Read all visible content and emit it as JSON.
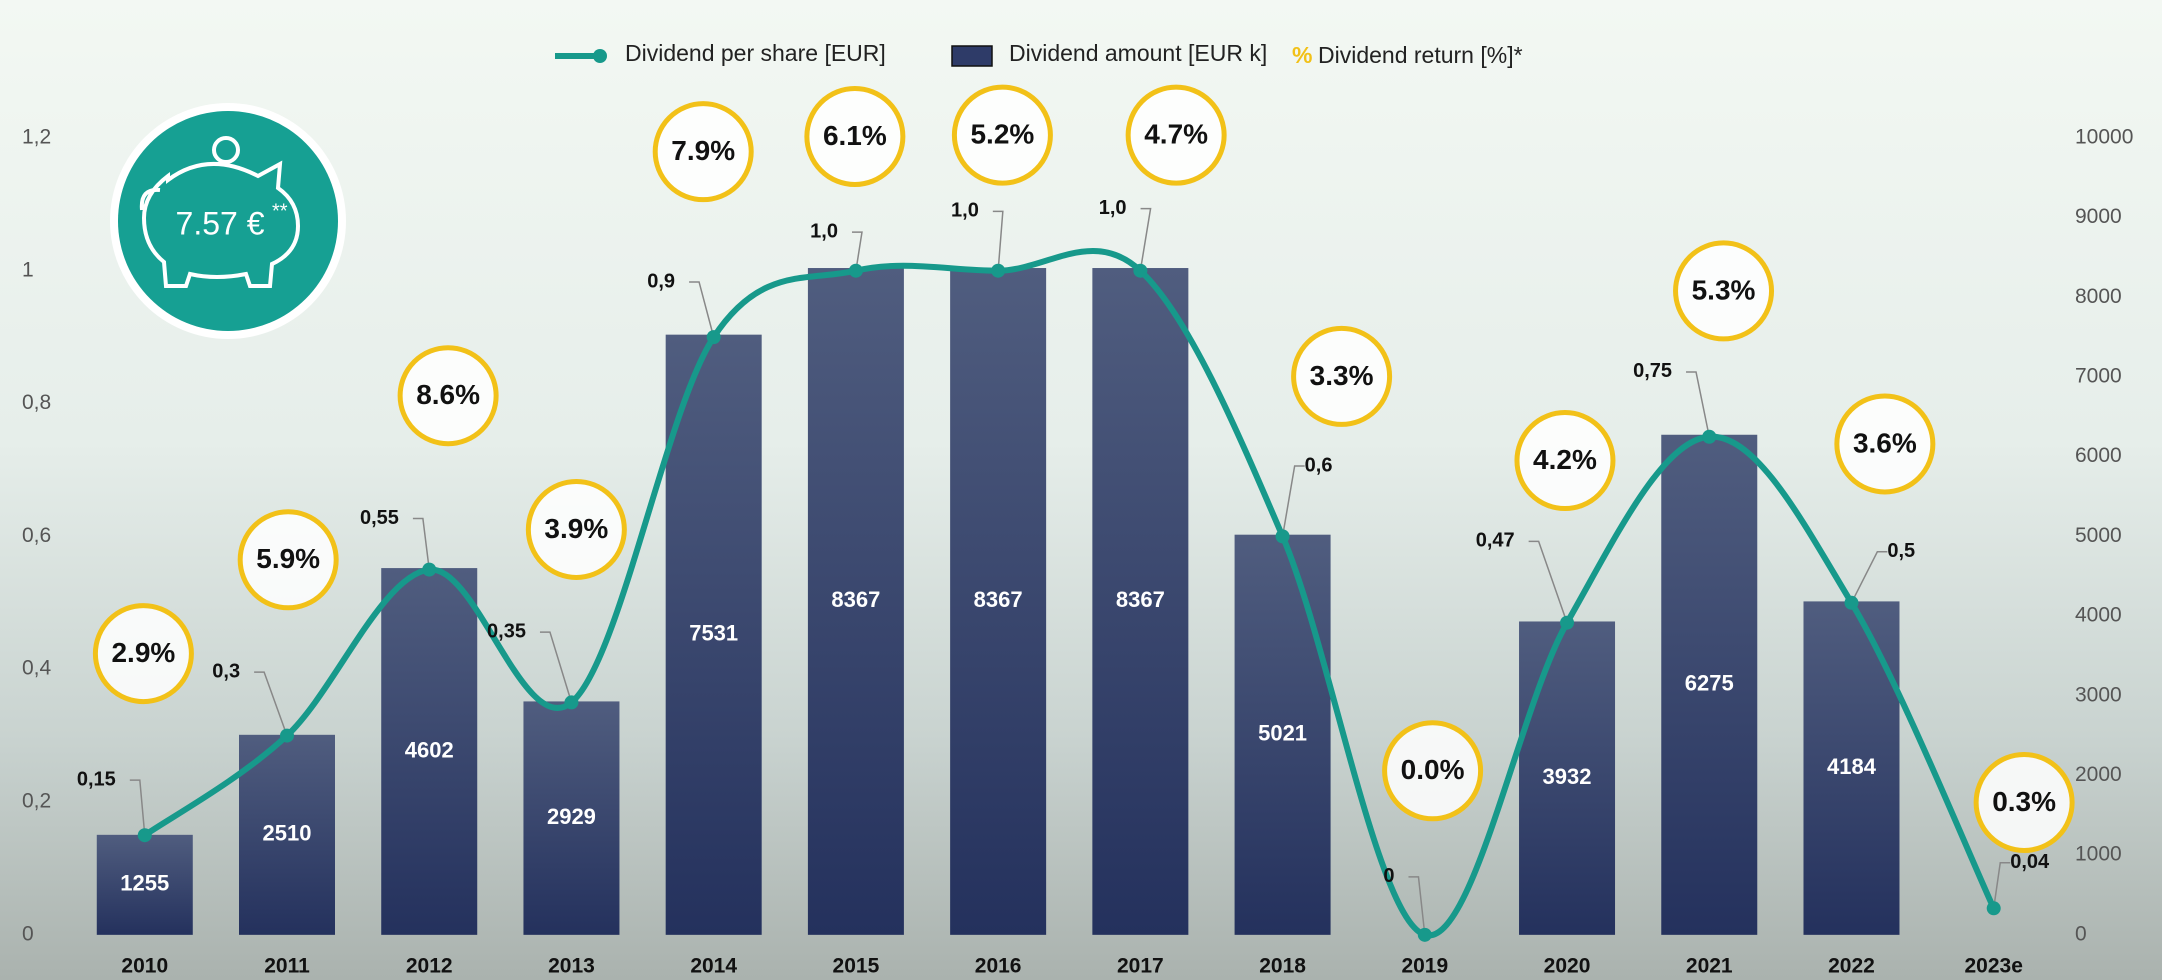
{
  "badge": {
    "text": "7.57 €",
    "sup": "**"
  },
  "chart_data": {
    "type": "combo",
    "categories": [
      "2010",
      "2011",
      "2012",
      "2013",
      "2014",
      "2015",
      "2016",
      "2017",
      "2018",
      "2019",
      "2020",
      "2021",
      "2022",
      "2023e"
    ],
    "series": [
      {
        "name": "Dividend per share [EUR]",
        "color": "#17998b",
        "axis": "y",
        "values": [
          0.15,
          0.3,
          0.55,
          0.35,
          0.9,
          1.0,
          1.0,
          1.0,
          0.6,
          0,
          0.47,
          0.75,
          0.5,
          0.04
        ],
        "value_labels": [
          "0,15",
          "0,3",
          "0,55",
          "0,35",
          "0,9",
          "1,0",
          "1,0",
          "1,0",
          "0,6",
          "0",
          "0,47",
          "0,75",
          "0,5",
          "0,04"
        ]
      },
      {
        "name": "Dividend amount [EUR k]",
        "color": "#2e3b68",
        "axis": "y2",
        "values": [
          1255,
          2510,
          4602,
          2929,
          7531,
          8367,
          8367,
          8367,
          5021,
          null,
          3932,
          6275,
          4184,
          null
        ]
      },
      {
        "name": "Dividend return [%]*",
        "color": "#f2c118",
        "legend_symbol": "%",
        "values": [
          2.9,
          5.9,
          8.6,
          3.9,
          7.9,
          6.1,
          5.2,
          4.7,
          3.3,
          0.0,
          4.2,
          5.3,
          3.6,
          0.3
        ],
        "value_labels": [
          "2.9%",
          "5.9%",
          "8.6%",
          "3.9%",
          "7.9%",
          "6.1%",
          "5.2%",
          "4.7%",
          "3.3%",
          "0.0%",
          "4.2%",
          "5.3%",
          "3.6%",
          "0.3%"
        ]
      }
    ],
    "ylim": [
      0,
      1.2
    ],
    "yticks": [
      0,
      {
        "value": 0.2,
        "label": "0,2"
      },
      {
        "value": 0.4,
        "label": "0,4"
      },
      {
        "value": 0.6,
        "label": "0,6"
      },
      {
        "value": 0.8,
        "label": "0,8"
      },
      1,
      {
        "value": 1.2,
        "label": "1,2"
      }
    ],
    "y2lim": [
      0,
      10000
    ],
    "y2ticks": [
      0,
      1000,
      2000,
      3000,
      4000,
      5000,
      6000,
      7000,
      8000,
      9000,
      10000
    ]
  }
}
